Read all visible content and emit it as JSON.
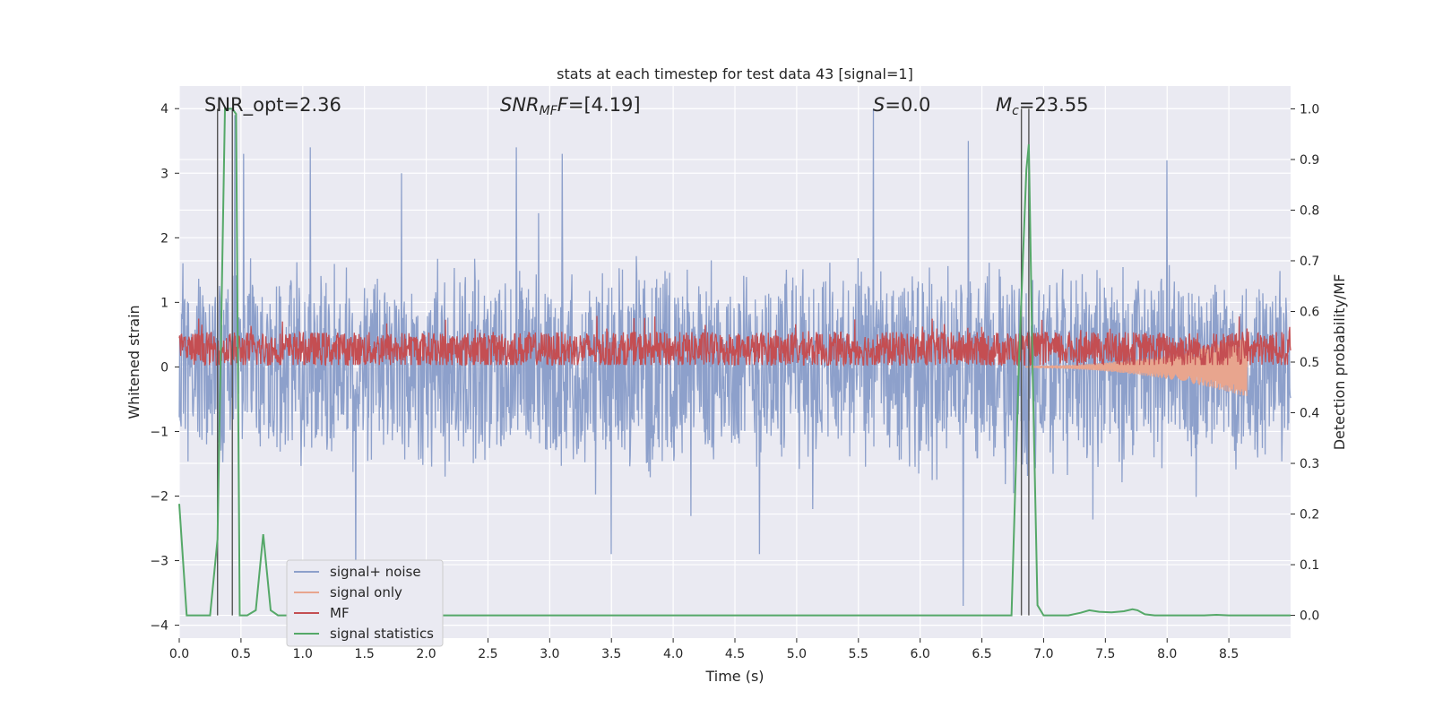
{
  "chart_data": {
    "type": "line",
    "title": "stats at each timestep for test data 43 [signal=1]",
    "xlabel": "Time (s)",
    "ylabel": "Whitened strain",
    "y2label": "Detection probability/MF",
    "xlim": [
      0,
      9
    ],
    "ylim": [
      -4.2,
      4.35
    ],
    "y2lim": [
      -0.045,
      1.045
    ],
    "xticks": [
      "0.0",
      "0.5",
      "1.0",
      "1.5",
      "2.0",
      "2.5",
      "3.0",
      "3.5",
      "4.0",
      "4.5",
      "5.0",
      "5.5",
      "6.0",
      "6.5",
      "7.0",
      "7.5",
      "8.0",
      "8.5"
    ],
    "yticks": [
      "−4",
      "−3",
      "−2",
      "−1",
      "0",
      "1",
      "2",
      "3",
      "4"
    ],
    "y2ticks": [
      "0.0",
      "0.1",
      "0.2",
      "0.3",
      "0.4",
      "0.5",
      "0.6",
      "0.7",
      "0.8",
      "0.9",
      "1.0"
    ],
    "grid": true,
    "legend_position": "lower-left",
    "annotations": {
      "snr_opt": "SNR_opt=2.36",
      "snr_mf_base": "SNR",
      "snr_mf_sub": "MF",
      "snr_mf_value": "=[4.19]",
      "s_symbol": "S",
      "s_value": "=0.0",
      "mc_symbol": "M",
      "mc_sub": "c",
      "mc_value": "=23.55"
    },
    "vlines_x": [
      0.31,
      0.43,
      6.82,
      6.88
    ],
    "series": [
      {
        "name": "signal+ noise",
        "color": "#8da0cb",
        "axis": "left",
        "kind": "noise",
        "amplitude": 1.7,
        "peaks": [
          [
            0.45,
            3.9
          ],
          [
            0.52,
            3.3
          ],
          [
            1.06,
            3.4
          ],
          [
            2.73,
            3.4
          ],
          [
            5.62,
            4.0
          ],
          [
            6.39,
            3.5
          ],
          [
            6.35,
            -3.7
          ],
          [
            1.43,
            -3.4
          ],
          [
            3.5,
            -2.9
          ],
          [
            4.7,
            -2.9
          ],
          [
            8.0,
            3.2
          ],
          [
            1.8,
            3.0
          ],
          [
            3.1,
            3.3
          ]
        ]
      },
      {
        "name": "signal only",
        "color": "#e8a58e",
        "axis": "left",
        "kind": "chirp",
        "t_start": 6.85,
        "t_end": 8.65,
        "amp_max": 0.45
      },
      {
        "name": "MF",
        "color": "#c44e52",
        "axis": "left",
        "kind": "mf",
        "center": 0.27,
        "spread": 0.55
      },
      {
        "name": "signal statistics",
        "color": "#55a868",
        "axis": "right",
        "x": [
          0.0,
          0.06,
          0.12,
          0.18,
          0.25,
          0.31,
          0.37,
          0.4,
          0.43,
          0.46,
          0.49,
          0.55,
          0.62,
          0.68,
          0.74,
          0.8,
          0.9,
          1.0,
          2.0,
          3.0,
          4.0,
          5.0,
          6.0,
          6.5,
          6.74,
          6.8,
          6.86,
          6.88,
          6.91,
          6.95,
          7.0,
          7.1,
          7.2,
          7.3,
          7.37,
          7.45,
          7.55,
          7.65,
          7.72,
          7.76,
          7.82,
          7.9,
          8.0,
          8.3,
          8.4,
          8.5,
          9.0
        ],
        "values": [
          0.22,
          0.0,
          0.0,
          0.0,
          0.0,
          0.15,
          1.0,
          1.0,
          1.0,
          0.99,
          0.0,
          0.0,
          0.01,
          0.16,
          0.01,
          0.0,
          0.0,
          0.0,
          0.0,
          0.0,
          0.0,
          0.0,
          0.0,
          0.0,
          0.0,
          0.5,
          0.88,
          0.93,
          0.5,
          0.02,
          0.0,
          0.0,
          0.0,
          0.005,
          0.01,
          0.007,
          0.006,
          0.008,
          0.012,
          0.01,
          0.002,
          0.0,
          0.0,
          0.0,
          0.001,
          0.0,
          0.0
        ]
      }
    ]
  }
}
